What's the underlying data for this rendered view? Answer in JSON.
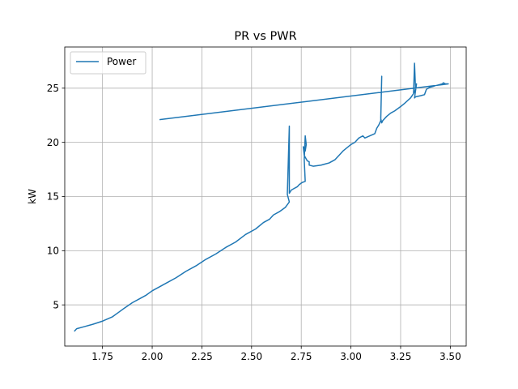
{
  "chart_data": {
    "type": "line",
    "title": "PR vs PWR",
    "xlabel": "",
    "ylabel": "kW",
    "xlim": [
      1.56,
      3.58
    ],
    "ylim": [
      1.2,
      28.8
    ],
    "xticks": [
      1.75,
      2.0,
      2.25,
      2.5,
      2.75,
      3.0,
      3.25,
      3.5
    ],
    "xtick_labels": [
      "1.75",
      "2.00",
      "2.25",
      "2.50",
      "2.75",
      "3.00",
      "3.25",
      "3.50"
    ],
    "yticks": [
      5,
      10,
      15,
      20,
      25
    ],
    "ytick_labels": [
      "5",
      "10",
      "15",
      "20",
      "25"
    ],
    "grid": true,
    "legend_position": "top-left",
    "colors": {
      "series": "#1f77b4",
      "grid": "#b0b0b0",
      "axes": "#000000"
    },
    "series": [
      {
        "name": "Power",
        "x": [
          1.61,
          1.62,
          1.66,
          1.7,
          1.75,
          1.8,
          1.83,
          1.86,
          1.9,
          1.94,
          1.97,
          2.0,
          2.03,
          2.07,
          2.12,
          2.17,
          2.22,
          2.27,
          2.32,
          2.37,
          2.42,
          2.47,
          2.52,
          2.56,
          2.59,
          2.61,
          2.64,
          2.67,
          2.69,
          2.68,
          2.69,
          2.69,
          2.69,
          2.7,
          2.71,
          2.73,
          2.74,
          2.755,
          2.77,
          2.765,
          2.77,
          2.775,
          2.77,
          2.76,
          2.765,
          2.78,
          2.79,
          2.79,
          2.81,
          2.85,
          2.87,
          2.89,
          2.92,
          2.94,
          2.96,
          2.98,
          3.0,
          3.02,
          3.04,
          3.06,
          3.07,
          3.12,
          3.13,
          3.14,
          3.15,
          3.155,
          3.15,
          3.155,
          3.16,
          3.18,
          3.2,
          3.22,
          3.25,
          3.27,
          3.3,
          3.315,
          3.32,
          3.325,
          3.32,
          3.33,
          3.32,
          3.325,
          3.35,
          3.37,
          3.38,
          3.4,
          3.42,
          3.44,
          3.46,
          3.465,
          3.475,
          3.49,
          3.45,
          2.04
        ],
        "y": [
          2.6,
          2.8,
          3.0,
          3.2,
          3.5,
          3.9,
          4.3,
          4.7,
          5.2,
          5.6,
          5.9,
          6.3,
          6.6,
          7.0,
          7.5,
          8.1,
          8.6,
          9.2,
          9.7,
          10.3,
          10.8,
          11.5,
          12.0,
          12.6,
          12.9,
          13.3,
          13.6,
          14.0,
          14.5,
          15.2,
          21.5,
          18.2,
          15.3,
          15.6,
          15.7,
          15.9,
          16.1,
          16.3,
          16.4,
          18.4,
          20.6,
          19.8,
          19.2,
          19.6,
          18.8,
          18.3,
          18.2,
          17.9,
          17.8,
          17.9,
          18.0,
          18.1,
          18.4,
          18.8,
          19.2,
          19.5,
          19.8,
          20.0,
          20.4,
          20.6,
          20.4,
          20.8,
          21.3,
          21.6,
          22.0,
          26.1,
          22.2,
          21.8,
          22.0,
          22.4,
          22.7,
          22.9,
          23.3,
          23.6,
          24.1,
          24.5,
          27.3,
          24.9,
          24.6,
          25.4,
          24.1,
          24.2,
          24.3,
          24.4,
          24.9,
          25.1,
          25.2,
          25.3,
          25.4,
          25.5,
          25.4,
          25.4,
          25.3,
          22.1
        ]
      }
    ]
  }
}
